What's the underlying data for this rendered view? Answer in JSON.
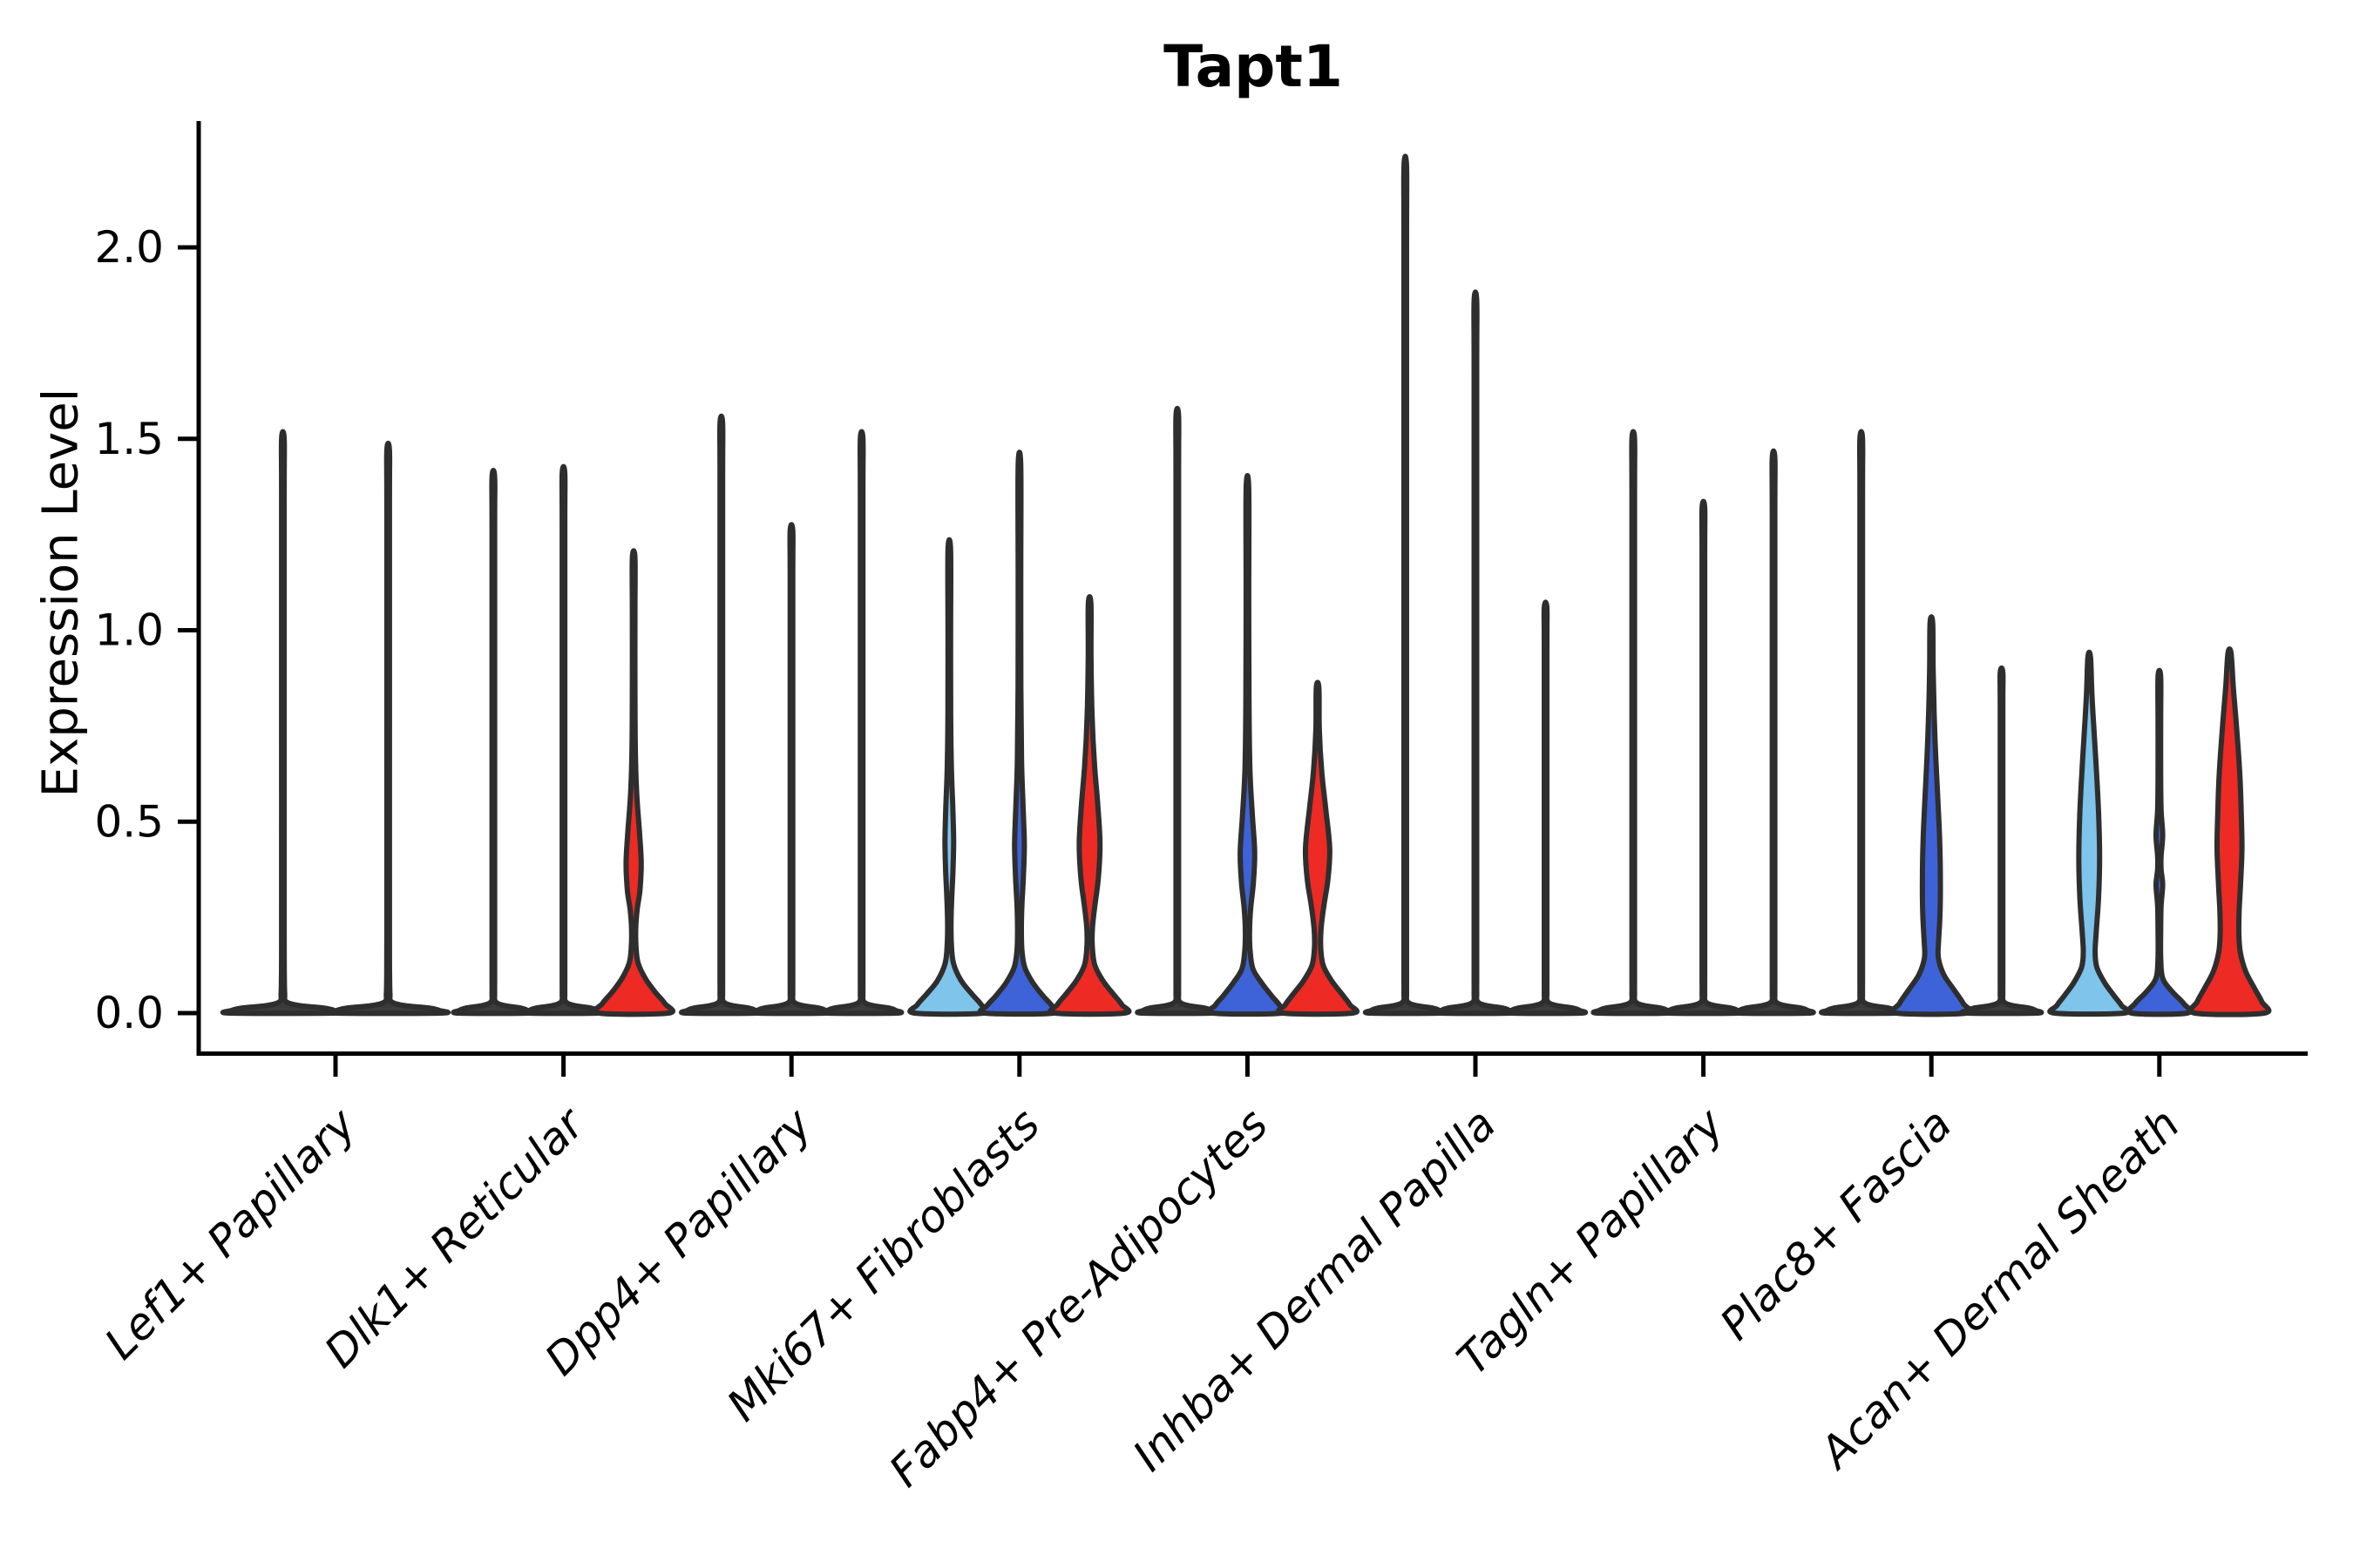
{
  "title": {
    "text": "Tapt1"
  },
  "axes": {
    "ylabel": "Expression Level",
    "ytick_labels": [
      "0.0",
      "0.5",
      "1.0",
      "1.5",
      "2.0"
    ]
  },
  "chart_data": {
    "type": "violin",
    "title": "Tapt1",
    "xlabel": "",
    "ylabel": "Expression Level",
    "ylim": [
      -0.107,
      2.33
    ],
    "yticks": [
      0.0,
      0.5,
      1.0,
      1.5,
      2.0
    ],
    "grid": false,
    "legend": "none",
    "x_tick_rotation": 45,
    "palette": {
      "skyblue": "#7EC4EB",
      "blue": "#3E63D8",
      "red": "#EE2A24",
      "needle": "#3B3B3B",
      "outline": "#2E2E2E"
    },
    "categories": [
      "Lef1+ Papillary",
      "Dlk1+ Reticular",
      "Dpp4+ Papillary",
      "Mki67+ Fibroblasts",
      "Fabp4+ Pre-Adipocytes",
      "Inhba+ Dermal Papilla",
      "Tagln+ Papillary",
      "Plac8+ Fascia",
      "Acan+ Dermal Sheath"
    ],
    "groups": [
      {
        "label": "Lef1+ Papillary",
        "violins": [
          {
            "tip": 1.5,
            "shape": "needle",
            "fill": null
          },
          {
            "tip": 1.47,
            "shape": "needle",
            "fill": null
          }
        ]
      },
      {
        "label": "Dlk1+ Reticular",
        "violins": [
          {
            "tip": 1.4,
            "shape": "needle",
            "fill": null
          },
          {
            "tip": 1.41,
            "shape": "needle",
            "fill": null
          },
          {
            "tip": 1.19,
            "shape": "body",
            "fill": "red",
            "profile": [
              [
                1.19,
                0.018
              ],
              [
                1.05,
                0.03
              ],
              [
                0.85,
                0.035
              ],
              [
                0.68,
                0.05
              ],
              [
                0.57,
                0.09
              ],
              [
                0.47,
                0.17
              ],
              [
                0.39,
                0.22
              ],
              [
                0.32,
                0.18
              ],
              [
                0.27,
                0.1
              ],
              [
                0.22,
                0.06
              ],
              [
                0.17,
                0.07
              ],
              [
                0.13,
                0.13
              ],
              [
                0.09,
                0.34
              ],
              [
                0.055,
                0.62
              ],
              [
                0.025,
                0.9
              ],
              [
                0,
                1
              ]
            ]
          }
        ]
      },
      {
        "label": "Dpp4+ Papillary",
        "violins": [
          {
            "tip": 1.54,
            "shape": "needle",
            "fill": null
          },
          {
            "tip": 1.26,
            "shape": "needle",
            "fill": null
          },
          {
            "tip": 1.5,
            "shape": "needle",
            "fill": null
          }
        ]
      },
      {
        "label": "Mki67+ Fibroblasts",
        "violins": [
          {
            "tip": 1.21,
            "shape": "body",
            "fill": "skyblue",
            "profile": [
              [
                1.21,
                0.018
              ],
              [
                1.0,
                0.03
              ],
              [
                0.78,
                0.04
              ],
              [
                0.64,
                0.06
              ],
              [
                0.54,
                0.1
              ],
              [
                0.45,
                0.125
              ],
              [
                0.37,
                0.105
              ],
              [
                0.3,
                0.07
              ],
              [
                0.24,
                0.05
              ],
              [
                0.18,
                0.06
              ],
              [
                0.13,
                0.12
              ],
              [
                0.085,
                0.34
              ],
              [
                0.05,
                0.65
              ],
              [
                0.022,
                0.92
              ],
              [
                0,
                1
              ]
            ]
          },
          {
            "tip": 1.43,
            "shape": "body",
            "fill": "blue",
            "profile": [
              [
                1.43,
                0.018
              ],
              [
                1.15,
                0.03
              ],
              [
                0.85,
                0.04
              ],
              [
                0.66,
                0.06
              ],
              [
                0.55,
                0.1
              ],
              [
                0.44,
                0.14
              ],
              [
                0.35,
                0.11
              ],
              [
                0.28,
                0.07
              ],
              [
                0.22,
                0.055
              ],
              [
                0.165,
                0.07
              ],
              [
                0.12,
                0.15
              ],
              [
                0.08,
                0.38
              ],
              [
                0.045,
                0.68
              ],
              [
                0.02,
                0.93
              ],
              [
                0,
                1
              ]
            ]
          },
          {
            "tip": 1.07,
            "shape": "body",
            "fill": "red",
            "profile": [
              [
                1.07,
                0.02
              ],
              [
                0.93,
                0.04
              ],
              [
                0.78,
                0.07
              ],
              [
                0.65,
                0.14
              ],
              [
                0.54,
                0.24
              ],
              [
                0.44,
                0.3
              ],
              [
                0.35,
                0.25
              ],
              [
                0.28,
                0.15
              ],
              [
                0.22,
                0.08
              ],
              [
                0.17,
                0.08
              ],
              [
                0.125,
                0.15
              ],
              [
                0.085,
                0.38
              ],
              [
                0.05,
                0.68
              ],
              [
                0.022,
                0.93
              ],
              [
                0,
                1
              ]
            ]
          }
        ]
      },
      {
        "label": "Fabp4+ Pre-Adipocytes",
        "violins": [
          {
            "tip": 1.56,
            "shape": "needle",
            "fill": null
          },
          {
            "tip": 1.37,
            "shape": "body",
            "fill": "blue",
            "profile": [
              [
                1.37,
                0.018
              ],
              [
                1.1,
                0.03
              ],
              [
                0.82,
                0.045
              ],
              [
                0.64,
                0.07
              ],
              [
                0.52,
                0.14
              ],
              [
                0.42,
                0.21
              ],
              [
                0.34,
                0.17
              ],
              [
                0.27,
                0.09
              ],
              [
                0.21,
                0.06
              ],
              [
                0.16,
                0.08
              ],
              [
                0.115,
                0.16
              ],
              [
                0.08,
                0.4
              ],
              [
                0.045,
                0.7
              ],
              [
                0.02,
                0.93
              ],
              [
                0,
                1
              ]
            ]
          },
          {
            "tip": 0.85,
            "shape": "body",
            "fill": "red",
            "profile": [
              [
                0.85,
                0.022
              ],
              [
                0.74,
                0.05
              ],
              [
                0.63,
                0.12
              ],
              [
                0.53,
                0.24
              ],
              [
                0.43,
                0.35
              ],
              [
                0.35,
                0.3
              ],
              [
                0.28,
                0.18
              ],
              [
                0.22,
                0.1
              ],
              [
                0.17,
                0.09
              ],
              [
                0.125,
                0.16
              ],
              [
                0.085,
                0.4
              ],
              [
                0.05,
                0.7
              ],
              [
                0.022,
                0.93
              ],
              [
                0,
                1
              ]
            ]
          }
        ]
      },
      {
        "label": "Inhba+ Dermal Papilla",
        "violins": [
          {
            "tip": 2.21,
            "shape": "needle",
            "fill": null
          },
          {
            "tip": 1.86,
            "shape": "needle",
            "fill": null
          },
          {
            "tip": 1.06,
            "shape": "needle",
            "fill": null
          }
        ]
      },
      {
        "label": "Tagln+ Papillary",
        "violins": [
          {
            "tip": 1.5,
            "shape": "needle",
            "fill": null
          },
          {
            "tip": 1.32,
            "shape": "needle",
            "fill": null
          },
          {
            "tip": 1.45,
            "shape": "needle",
            "fill": null
          }
        ]
      },
      {
        "label": "Plac8+ Fascia",
        "violins": [
          {
            "tip": 1.5,
            "shape": "needle",
            "fill": null
          },
          {
            "tip": 1.02,
            "shape": "body",
            "fill": "blue",
            "profile": [
              [
                1.02,
                0.025
              ],
              [
                0.9,
                0.05
              ],
              [
                0.78,
                0.08
              ],
              [
                0.66,
                0.13
              ],
              [
                0.55,
                0.19
              ],
              [
                0.45,
                0.24
              ],
              [
                0.35,
                0.26
              ],
              [
                0.26,
                0.25
              ],
              [
                0.19,
                0.21
              ],
              [
                0.145,
                0.2
              ],
              [
                0.1,
                0.36
              ],
              [
                0.06,
                0.66
              ],
              [
                0.025,
                0.92
              ],
              [
                0,
                1
              ]
            ]
          },
          {
            "tip": 0.89,
            "shape": "needle",
            "fill": null
          }
        ]
      },
      {
        "label": "Acan+ Dermal Sheath",
        "violins": [
          {
            "tip": 0.93,
            "shape": "body",
            "fill": "skyblue",
            "profile": [
              [
                0.93,
                0.035
              ],
              [
                0.83,
                0.08
              ],
              [
                0.72,
                0.15
              ],
              [
                0.6,
                0.23
              ],
              [
                0.5,
                0.28
              ],
              [
                0.4,
                0.3
              ],
              [
                0.3,
                0.27
              ],
              [
                0.22,
                0.21
              ],
              [
                0.16,
                0.17
              ],
              [
                0.12,
                0.22
              ],
              [
                0.08,
                0.44
              ],
              [
                0.045,
                0.72
              ],
              [
                0.02,
                0.93
              ],
              [
                0,
                1
              ]
            ]
          },
          {
            "tip": 0.88,
            "shape": "body",
            "fill": "blue",
            "profile": [
              [
                0.88,
                0.015
              ],
              [
                0.76,
                0.025
              ],
              [
                0.62,
                0.03
              ],
              [
                0.53,
                0.05
              ],
              [
                0.465,
                0.095
              ],
              [
                0.41,
                0.05
              ],
              [
                0.375,
                0.05
              ],
              [
                0.335,
                0.095
              ],
              [
                0.28,
                0.05
              ],
              [
                0.21,
                0.035
              ],
              [
                0.14,
                0.04
              ],
              [
                0.09,
                0.1
              ],
              [
                0.055,
                0.38
              ],
              [
                0.025,
                0.7
              ],
              [
                0,
                0.8
              ]
            ]
          },
          {
            "tip": 0.94,
            "shape": "body",
            "fill": "red",
            "profile": [
              [
                0.94,
                0.045
              ],
              [
                0.85,
                0.11
              ],
              [
                0.74,
                0.21
              ],
              [
                0.62,
                0.3
              ],
              [
                0.52,
                0.34
              ],
              [
                0.43,
                0.36
              ],
              [
                0.34,
                0.32
              ],
              [
                0.27,
                0.28
              ],
              [
                0.21,
                0.27
              ],
              [
                0.16,
                0.31
              ],
              [
                0.11,
                0.46
              ],
              [
                0.065,
                0.72
              ],
              [
                0.03,
                0.93
              ],
              [
                0,
                1
              ]
            ]
          }
        ]
      }
    ]
  }
}
